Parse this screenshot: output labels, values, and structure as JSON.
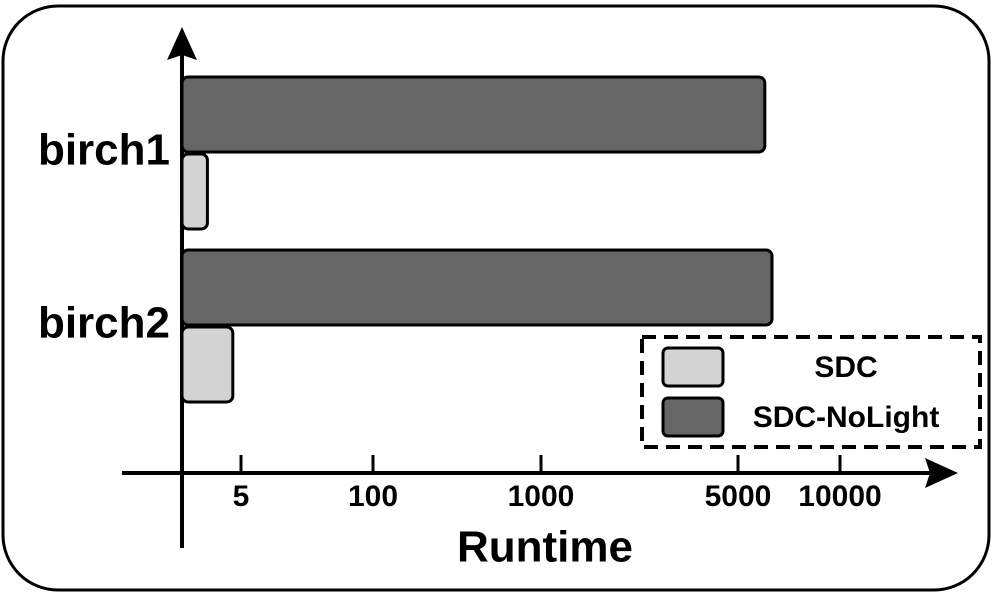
{
  "chart_data": {
    "type": "bar",
    "orientation": "horizontal",
    "xscale": "log",
    "categories": [
      "birch1",
      "birch2"
    ],
    "series": [
      {
        "name": "SDC-NoLight",
        "color": "#666666",
        "values": [
          6000,
          6300
        ]
      },
      {
        "name": "SDC",
        "color": "#d3d3d3",
        "values": [
          2,
          4
        ]
      }
    ],
    "xlim": [
      1,
      30000
    ],
    "xticks": [
      5,
      100,
      1000,
      5000,
      10000
    ],
    "xlabel": "Runtime",
    "legend": "lower right"
  }
}
